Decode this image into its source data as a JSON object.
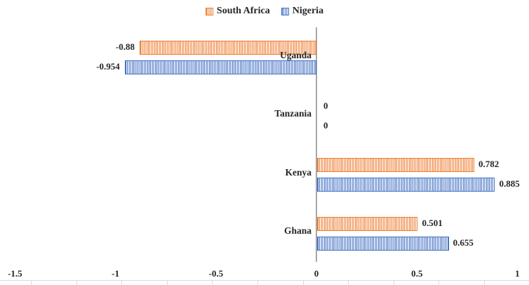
{
  "chart_data": {
    "type": "bar",
    "orientation": "horizontal",
    "title": "",
    "categories": [
      "Uganda",
      "Tanzania",
      "Kenya",
      "Ghana"
    ],
    "series": [
      {
        "name": "South Africa",
        "color": "#ED7D31",
        "values": [
          -0.88,
          0,
          0.782,
          0.501
        ],
        "labels": [
          "-0.88",
          "0",
          "0.782",
          "0.501"
        ]
      },
      {
        "name": "Nigeria",
        "color": "#4472C4",
        "values": [
          -0.954,
          0,
          0.885,
          0.655
        ],
        "labels": [
          "-0.954",
          "0",
          "0.885",
          "0.655"
        ]
      }
    ],
    "xlim": [
      -1.5,
      1
    ],
    "x_ticks": [
      "-1.5",
      "-1",
      "-0.5",
      "0",
      "0.5",
      "1"
    ],
    "x_tick_values": [
      -1.5,
      -1,
      -0.5,
      0,
      0.5,
      1
    ],
    "grid": false,
    "legend_position": "top",
    "bar_fill_pattern": "vertical-stripes",
    "axis_color": "#a6a6a6",
    "text_color": "#262626"
  }
}
